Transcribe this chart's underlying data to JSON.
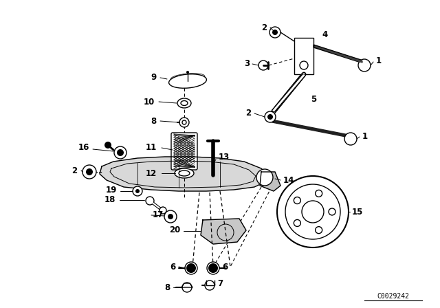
{
  "bg_color": "#ffffff",
  "line_color": "#000000",
  "text_color": "#000000",
  "fig_width": 6.4,
  "fig_height": 4.48,
  "dpi": 100,
  "catalog_number": "C0029242"
}
